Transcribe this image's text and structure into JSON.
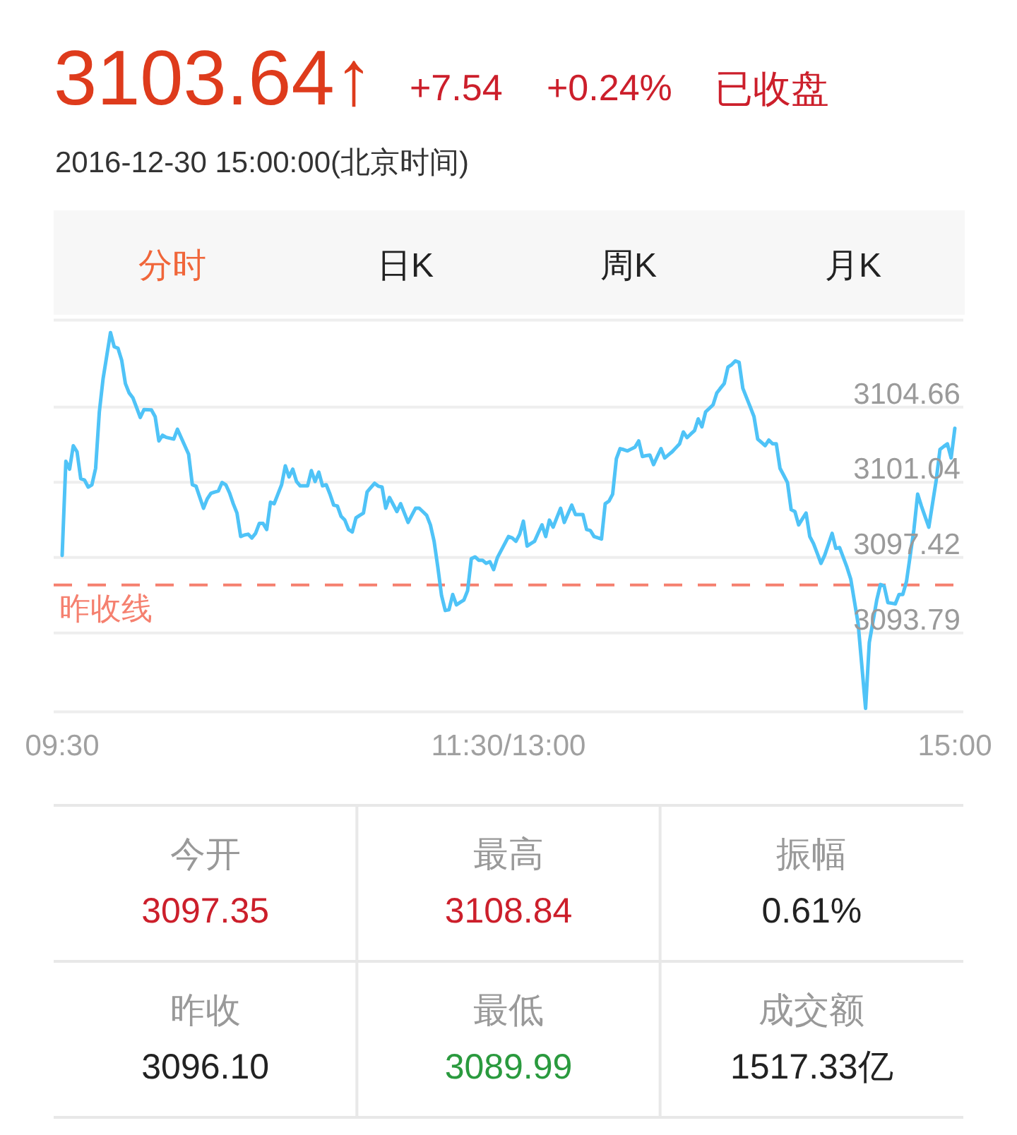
{
  "chart_data": [
    {
      "type": "line",
      "title": "3103.64↑",
      "subtitle": "2016-12-30 15:00:00(北京时间)",
      "annotations": [
        "+7.54",
        "+0.24%",
        "已收盘",
        "分时",
        "日K",
        "周K",
        "月K"
      ],
      "categories": [
        "09:30",
        null,
        null,
        null,
        null,
        null,
        null,
        null,
        null,
        null,
        null,
        null,
        null,
        null,
        null,
        null,
        null,
        null,
        null,
        null,
        null,
        null,
        null,
        null,
        null,
        null,
        null,
        null,
        null,
        null,
        null,
        null,
        null,
        null,
        null,
        null,
        null,
        null,
        null,
        null,
        null,
        null,
        null,
        null,
        null,
        null,
        null,
        null,
        null,
        null,
        null,
        null,
        null,
        null,
        null,
        null,
        null,
        null,
        null,
        null,
        null,
        null,
        null,
        null,
        null,
        null,
        null,
        null,
        null,
        null,
        null,
        null,
        null,
        null,
        null,
        null,
        null,
        null,
        null,
        null,
        null,
        null,
        null,
        null,
        null,
        null,
        null,
        null,
        null,
        null,
        null,
        null,
        null,
        null,
        null,
        null,
        null,
        null,
        null,
        null,
        null,
        null,
        null,
        null,
        null,
        null,
        null,
        null,
        null,
        null,
        null,
        null,
        null,
        null,
        null,
        null,
        null,
        null,
        null,
        null,
        "11:30/13:00",
        null,
        null,
        null,
        null,
        null,
        null,
        null,
        null,
        null,
        null,
        null,
        null,
        null,
        null,
        null,
        null,
        null,
        null,
        null,
        null,
        null,
        null,
        null,
        null,
        null,
        null,
        null,
        null,
        null,
        null,
        null,
        null,
        null,
        null,
        null,
        null,
        null,
        null,
        null,
        null,
        null,
        null,
        null,
        null,
        null,
        null,
        null,
        null,
        null,
        null,
        null,
        null,
        null,
        null,
        null,
        null,
        null,
        null,
        null,
        null,
        null,
        null,
        null,
        null,
        null,
        null,
        null,
        null,
        null,
        null,
        null,
        null,
        null,
        null,
        null,
        null,
        null,
        null,
        null,
        null,
        null,
        null,
        null,
        null,
        null,
        null,
        null,
        null,
        null,
        null,
        null,
        null,
        null,
        null,
        null,
        null,
        null,
        null,
        null,
        null,
        null,
        null,
        null,
        null,
        null,
        null,
        null,
        null,
        null,
        null,
        null,
        null,
        null,
        null,
        null,
        null,
        null,
        null,
        null,
        "15:00"
      ],
      "series": [
        {
          "color": "#4fc3f7",
          "values": [
            3097.52,
            3102.05,
            3101.67,
            3102.8,
            3102.51,
            3101.21,
            3101.15,
            3100.81,
            3100.92,
            3101.71,
            3104.43,
            3106.02,
            3107.13,
            3108.24,
            3107.56,
            3107.49,
            3106.92,
            3105.79,
            3105.34,
            3105.11,
            3104.64,
            3104.16,
            3104.54,
            3104.53,
            3104.52,
            3104.2,
            3103.03,
            3103.3,
            3103.2,
            3103.16,
            3103.12,
            3103.59,
            3103.19,
            3102.79,
            3102.39,
            3100.92,
            3100.85,
            3100.32,
            3099.79,
            3100.24,
            3100.51,
            3100.57,
            3100.62,
            3101.03,
            3100.92,
            3100.53,
            3100.01,
            3099.56,
            3098.43,
            3098.5,
            3098.54,
            3098.36,
            3098.58,
            3099.06,
            3099.06,
            3098.77,
            3100.08,
            3100.01,
            3100.47,
            3100.92,
            3101.83,
            3101.3,
            3101.67,
            3101.08,
            3100.87,
            3100.87,
            3100.87,
            3101.6,
            3101.08,
            3101.53,
            3100.87,
            3100.92,
            3100.47,
            3099.94,
            3099.9,
            3099.4,
            3099.22,
            3098.77,
            3098.65,
            3099.33,
            3099.45,
            3099.56,
            3100.58,
            3100.79,
            3100.99,
            3100.85,
            3100.81,
            3099.79,
            3100.31,
            3099.97,
            3099.63,
            3100.01,
            3099.56,
            3099.11,
            3099.45,
            3099.79,
            3099.79,
            3099.62,
            3099.45,
            3098.99,
            3098.2,
            3096.95,
            3095.59,
            3094.87,
            3094.91,
            3095.64,
            3095.14,
            3095.26,
            3095.37,
            3095.82,
            3097.36,
            3097.45,
            3097.29,
            3097.29,
            3097.14,
            3097.22,
            3096.84,
            3097.41,
            3097.75,
            3098.09,
            3098.43,
            3098.36,
            3098.2,
            3098.54,
            3099.17,
            3097.97,
            3098.09,
            3098.2,
            3098.6,
            3098.99,
            3098.43,
            3099.22,
            3098.88,
            3099.34,
            3099.79,
            3099.11,
            3099.53,
            3099.94,
            3099.49,
            3099.49,
            3099.49,
            3098.77,
            3098.72,
            3098.43,
            3098.37,
            3098.31,
            3100.01,
            3100.13,
            3100.47,
            3102.17,
            3102.66,
            3102.61,
            3102.55,
            3102.64,
            3102.73,
            3103.03,
            3102.28,
            3102.32,
            3102.35,
            3101.89,
            3102.28,
            3102.66,
            3102.21,
            3102.36,
            3102.51,
            3102.7,
            3102.89,
            3103.46,
            3103.19,
            3103.36,
            3103.52,
            3104.09,
            3103.71,
            3104.43,
            3104.6,
            3104.77,
            3105.34,
            3105.57,
            3105.79,
            3106.58,
            3106.7,
            3106.88,
            3106.81,
            3105.56,
            3105.11,
            3104.66,
            3104.2,
            3103.12,
            3102.96,
            3102.8,
            3103.07,
            3102.89,
            3102.89,
            3101.71,
            3101.37,
            3101.03,
            3099.72,
            3099.63,
            3098.99,
            3099.28,
            3099.56,
            3098.43,
            3098.09,
            3097.62,
            3097.14,
            3097.52,
            3098.05,
            3098.58,
            3097.86,
            3097.9,
            3097.43,
            3096.95,
            3096.39,
            3095.31,
            3094.23,
            3092.2,
            3090.16,
            3093.33,
            3094.35,
            3095.37,
            3096.12,
            3096.05,
            3095.25,
            3095.22,
            3095.19,
            3095.64,
            3095.64,
            3096.27,
            3097.52,
            3098.77,
            3100.47,
            3099.9,
            3099.39,
            3098.88,
            3100.02,
            3101.15,
            3102.62,
            3102.76,
            3102.89,
            3102.21,
            3103.64
          ]
        }
      ],
      "ylim": [
        3089.99,
        3108.84
      ],
      "yticks": [
        3093.79,
        3097.42,
        3101.04,
        3104.66
      ],
      "grid": "y",
      "ref_lines": [
        {
          "axis": "y",
          "value": 3096.1,
          "label": "昨收线",
          "color": "#f5806f",
          "line_style": "dashed"
        }
      ]
    },
    {
      "type": "other",
      "annotations": [
        "今开",
        "3097.35",
        "最高",
        "3108.84",
        "振幅",
        "0.61%",
        "昨收",
        "3096.10",
        "最低",
        "3089.99",
        "成交额",
        "1517.33亿"
      ]
    }
  ]
}
